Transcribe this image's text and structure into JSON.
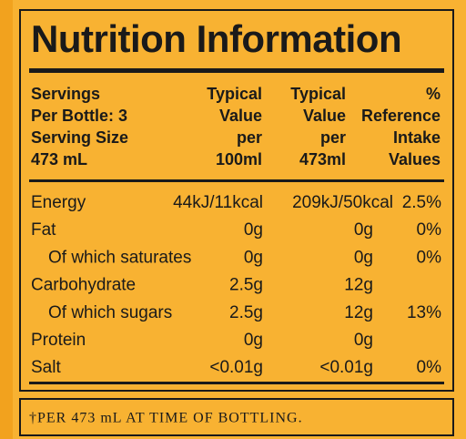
{
  "title": "Nutrition Information",
  "header": [
    [
      "Servings",
      "Per Bottle: 3",
      "Serving Size",
      "473 mL"
    ],
    [
      "Typical",
      "Value",
      "per",
      "100ml"
    ],
    [
      "Typical",
      "Value",
      "per",
      "473ml"
    ],
    [
      "%",
      "Reference",
      "Intake",
      "Values"
    ]
  ],
  "rows": [
    {
      "label": "Energy",
      "per_100ml": "44kJ/11kcal",
      "per_473ml": "209kJ/50kcal",
      "reference_intake": "2.5%"
    },
    {
      "label": "Fat",
      "per_100ml": "0g",
      "per_473ml": "0g",
      "reference_intake": "0%"
    },
    {
      "label": "Of which saturates",
      "indent": true,
      "per_100ml": "0g",
      "per_473ml": "0g",
      "reference_intake": "0%"
    },
    {
      "label": "Carbohydrate",
      "per_100ml": "2.5g",
      "per_473ml": "12g"
    },
    {
      "label": "Of which sugars",
      "indent": true,
      "per_100ml": "2.5g",
      "per_473ml": "12g",
      "reference_intake": "13%"
    },
    {
      "label": "Protein",
      "per_100ml": "0g",
      "per_473ml": "0g"
    },
    {
      "label": "Salt",
      "per_100ml": "<0.01g",
      "per_473ml": "<0.01g",
      "reference_intake": "0%"
    }
  ],
  "footnote": "†PER 473 mL AT TIME OF BOTTLING."
}
